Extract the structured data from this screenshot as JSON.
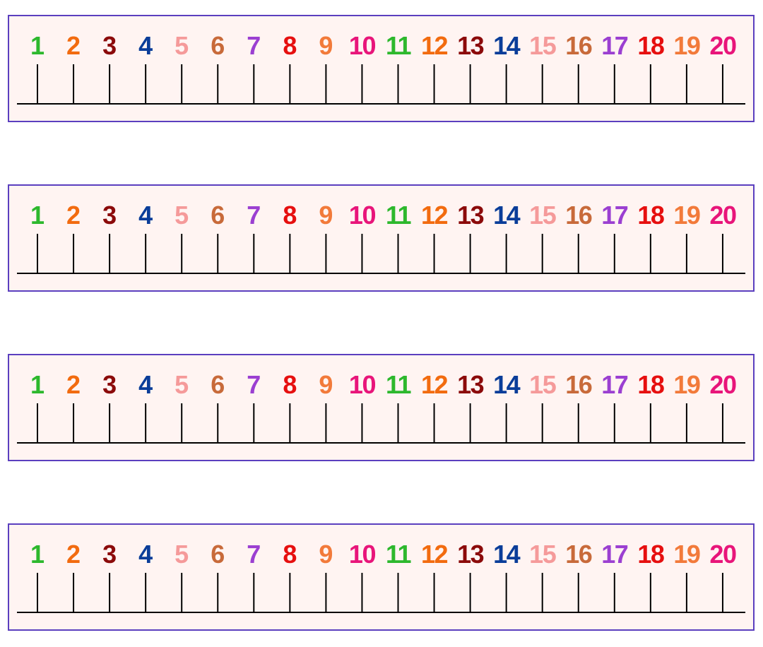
{
  "numbers": [
    "1",
    "2",
    "3",
    "4",
    "5",
    "6",
    "7",
    "8",
    "9",
    "10",
    "11",
    "12",
    "13",
    "14",
    "15",
    "16",
    "17",
    "18",
    "19",
    "20"
  ],
  "colors": {
    "strip_background": "#fff4f2",
    "strip_border": "#5b3fbf",
    "line": "#000000",
    "digits": [
      "#2db82d",
      "#f26b0f",
      "#8b0a0a",
      "#0a3d99",
      "#f59a9a",
      "#c86a3a",
      "#9b3fd1",
      "#e60f0f",
      "#f27a3a",
      "#e8157a"
    ]
  },
  "strips": [
    {
      "name": "number-line-strip-1"
    },
    {
      "name": "number-line-strip-2"
    },
    {
      "name": "number-line-strip-3"
    },
    {
      "name": "number-line-strip-4"
    }
  ]
}
